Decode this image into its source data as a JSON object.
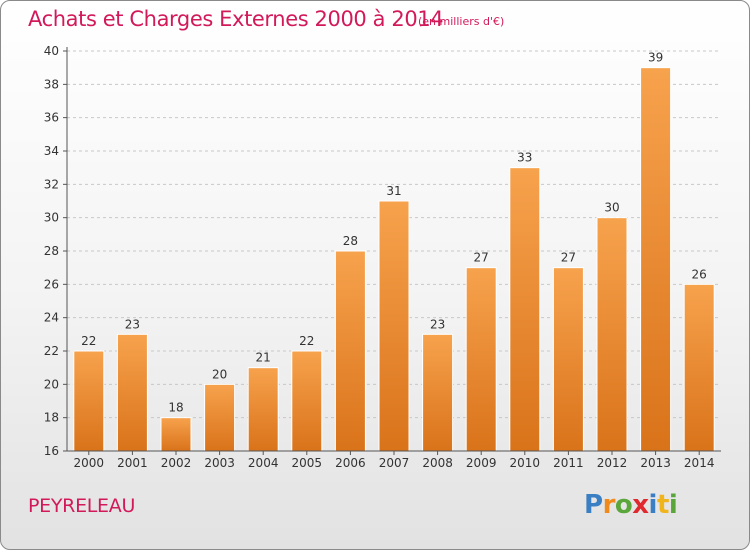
{
  "chart_data": {
    "type": "bar",
    "title": "Achats et Charges Externes 2000 à 2014",
    "subtitle": "(en milliers d'€)",
    "categories": [
      "2000",
      "2001",
      "2002",
      "2003",
      "2004",
      "2005",
      "2006",
      "2007",
      "2008",
      "2009",
      "2010",
      "2011",
      "2012",
      "2013",
      "2014"
    ],
    "values": [
      22,
      23,
      18,
      20,
      21,
      22,
      28,
      31,
      23,
      27,
      33,
      27,
      30,
      39,
      26
    ],
    "ylim": [
      16,
      40
    ],
    "yticks": [
      "16",
      "18",
      "20",
      "22",
      "24",
      "26",
      "28",
      "30",
      "32",
      "34",
      "36",
      "38",
      "40"
    ],
    "grid": true,
    "bar_color_top": "#f7a24d",
    "bar_color_bottom": "#d9731a",
    "axis_color": "#555555",
    "grid_color": "#c8c8c8"
  },
  "footer": {
    "place": "PEYRELEAU",
    "logo_parts": {
      "p": "P",
      "r": "r",
      "o": "o",
      "x": "x",
      "i": "i",
      "t": "t",
      "i2": "i"
    }
  },
  "colors": {
    "title": "#d2195a"
  }
}
